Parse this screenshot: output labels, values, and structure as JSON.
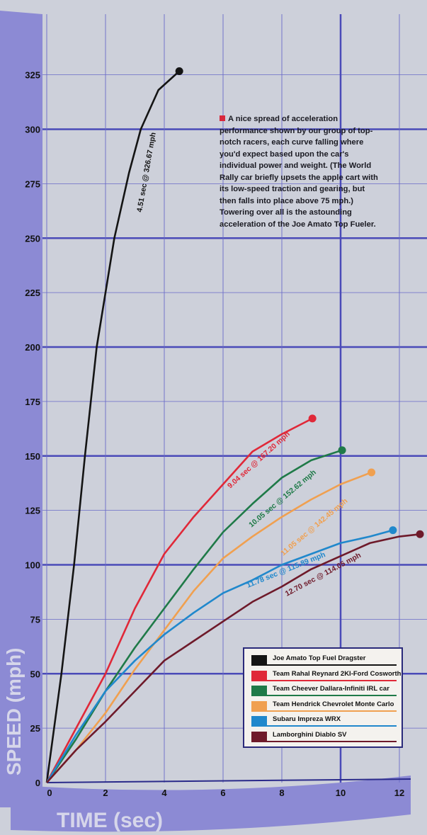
{
  "chart_data": {
    "type": "line",
    "xlabel": "TIME (sec)",
    "ylabel": "SPEED (mph)",
    "xlim": [
      0,
      12.8
    ],
    "ylim": [
      0,
      330
    ],
    "xticks": [
      "0",
      "2",
      "4",
      "6",
      "8",
      "10",
      "12"
    ],
    "yticks": [
      "0",
      "25",
      "50",
      "75",
      "100",
      "125",
      "150",
      "175",
      "200",
      "225",
      "250",
      "275",
      "300",
      "325"
    ],
    "grid": true,
    "legend_position": "bottom-right",
    "annotation": "A nice spread of acceleration performance shown by our group of top-notch racers, each curve falling where you'd expect based upon the car's individual power and weight. (The World Rally car briefly upsets the apple cart with its low-speed traction and gearing, but then falls into place above 75 mph.) Towering over all is the astounding acceleration of the Joe Amato Top Fueler.",
    "series": [
      {
        "name": "Joe Amato Top Fuel Dragster",
        "color": "#141414",
        "label": "4.51 sec @ 326.67 mph",
        "x": [
          0,
          0.5,
          0.93,
          1.3,
          1.7,
          2.3,
          2.8,
          3.2,
          3.8,
          4.51
        ],
        "y": [
          0,
          50,
          100,
          150,
          200,
          250,
          280,
          300,
          318,
          326.67
        ]
      },
      {
        "name": "Team Rahal Reynard 2KI-Ford Cosworth",
        "color": "#e02838",
        "label": "9.04 sec @ 167.20 mph",
        "x": [
          0,
          1,
          2,
          3,
          4,
          5,
          6,
          7,
          8,
          9.04
        ],
        "y": [
          0,
          25,
          50,
          80,
          105,
          122,
          137,
          152,
          160,
          167.2
        ]
      },
      {
        "name": "Team Cheever Dallara-Infiniti IRL car",
        "color": "#1f7a48",
        "label": "10.05 sec @ 152.62 mph",
        "x": [
          0,
          1,
          2,
          3,
          4,
          5,
          6,
          7,
          8,
          9,
          10.05
        ],
        "y": [
          0,
          20,
          42,
          62,
          80,
          98,
          115,
          128,
          140,
          148,
          152.62
        ]
      },
      {
        "name": "Team Hendrick Chevrolet Monte Carlo",
        "color": "#f0a050",
        "label": "11.05 sec @ 142.45 mph",
        "x": [
          0,
          1,
          2,
          3,
          4,
          5,
          6,
          7,
          8,
          9,
          10,
          11.05
        ],
        "y": [
          0,
          15,
          32,
          52,
          70,
          88,
          103,
          113,
          122,
          130,
          137,
          142.45
        ]
      },
      {
        "name": "Subaru Impreza WRX",
        "color": "#2088cc",
        "label": "11.78 sec @ 115.89 mph",
        "x": [
          0,
          1,
          2,
          3,
          4,
          5,
          6,
          7,
          8,
          9,
          10,
          11,
          11.78
        ],
        "y": [
          0,
          22,
          42,
          56,
          68,
          78,
          87,
          93,
          100,
          105,
          110,
          113,
          115.89
        ]
      },
      {
        "name": "Lamborghini Diablo SV",
        "color": "#6e1a2a",
        "label": "12.70 sec @ 114.05 mph",
        "x": [
          0,
          1,
          2,
          3,
          4,
          5,
          6,
          7,
          8,
          9,
          10,
          11,
          12,
          12.7
        ],
        "y": [
          0,
          15,
          28,
          42,
          56,
          65,
          74,
          83,
          90,
          98,
          104,
          110,
          113,
          114.05
        ]
      }
    ]
  }
}
